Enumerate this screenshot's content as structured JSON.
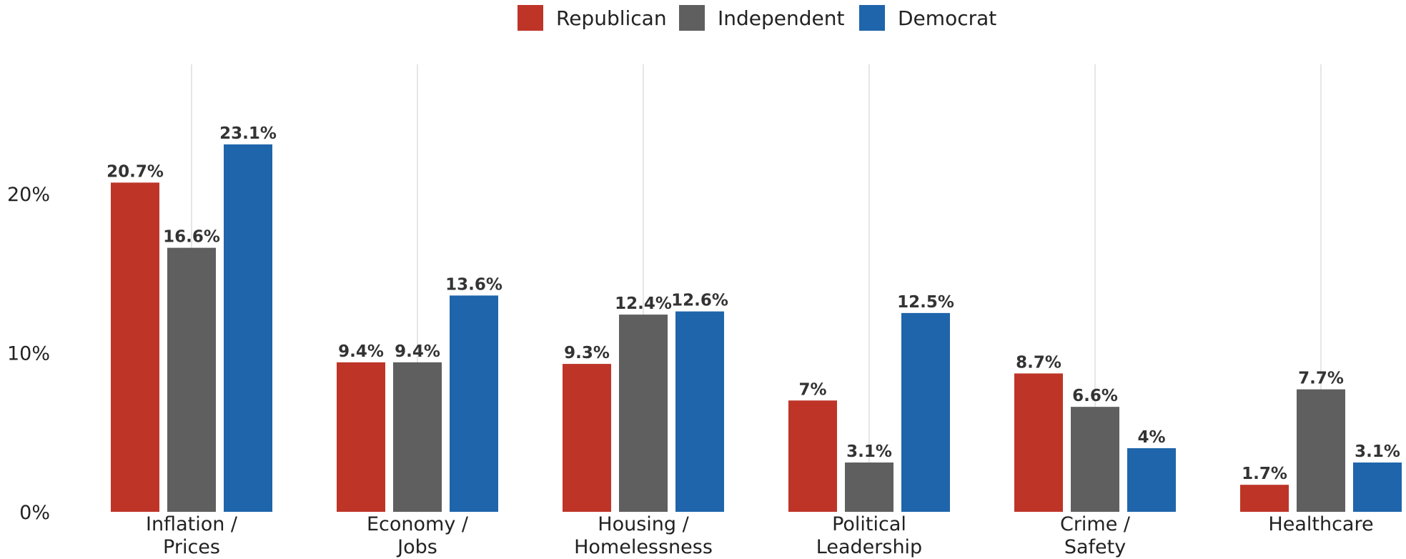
{
  "chart_data": {
    "type": "bar",
    "title": "",
    "xlabel": "",
    "ylabel": "",
    "categories": [
      [
        "Inflation /",
        "Prices"
      ],
      [
        "Economy /",
        "Jobs"
      ],
      [
        "Housing /",
        "Homelessness"
      ],
      [
        "Political",
        "Leadership"
      ],
      [
        "Crime /",
        "Safety"
      ],
      [
        "Healthcare"
      ]
    ],
    "series": [
      {
        "name": "Republican",
        "color": "#BE3528",
        "values": [
          20.7,
          9.4,
          9.3,
          7,
          8.7,
          1.7
        ],
        "labels": [
          "20.7%",
          "9.4%",
          "9.3%",
          "7%",
          "8.7%",
          "1.7%"
        ]
      },
      {
        "name": "Independent",
        "color": "#5F5F5F",
        "values": [
          16.6,
          9.4,
          12.4,
          3.1,
          6.6,
          7.7
        ],
        "labels": [
          "16.6%",
          "9.4%",
          "12.4%",
          "3.1%",
          "6.6%",
          "7.7%"
        ]
      },
      {
        "name": "Democrat",
        "color": "#1F65AB",
        "values": [
          23.1,
          13.6,
          12.6,
          12.5,
          4,
          3.1
        ],
        "labels": [
          "23.1%",
          "13.6%",
          "12.6%",
          "12.5%",
          "4%",
          "3.1%"
        ]
      }
    ],
    "ylim": [
      0,
      25
    ],
    "yticks": [
      0,
      10,
      20
    ],
    "ytick_labels": [
      "0%",
      "10%",
      "20%"
    ],
    "grid": "vertical lines at category centers",
    "legend_position": "top-center"
  }
}
